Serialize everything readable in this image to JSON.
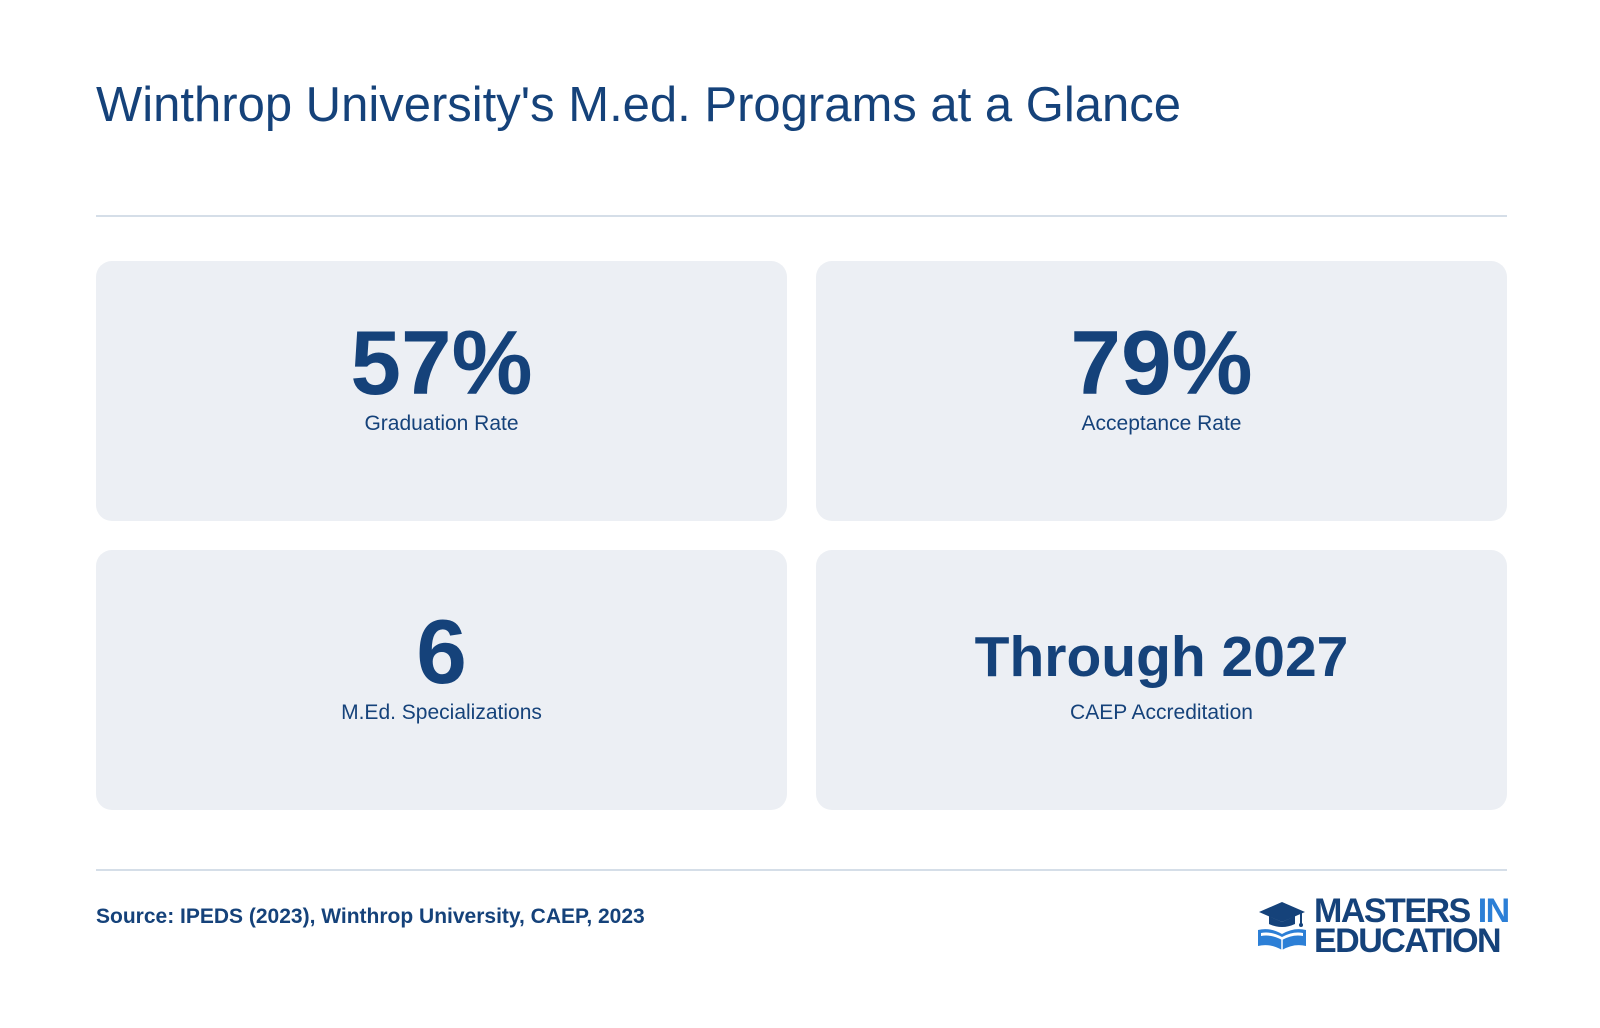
{
  "page": {
    "title": "Winthrop University's M.ed. Programs at a Glance"
  },
  "stats": [
    {
      "value": "57%",
      "label": "Graduation Rate"
    },
    {
      "value": "79%",
      "label": "Acceptance Rate"
    },
    {
      "value": "6",
      "label": "M.Ed. Specializations"
    },
    {
      "value": "Through 2027",
      "label": "CAEP Accreditation"
    }
  ],
  "footer": {
    "source": "Source: IPEDS (2023), Winthrop University, CAEP, 2023",
    "logo": {
      "word_masters": "MASTERS",
      "word_in": "IN",
      "word_education": "EDUCATION",
      "icon": "graduation-cap-book-icon"
    }
  },
  "colors": {
    "primary_navy": "#15427a",
    "accent_blue": "#2c7fd6",
    "card_background": "#eceff4",
    "divider": "#d5dee8"
  }
}
